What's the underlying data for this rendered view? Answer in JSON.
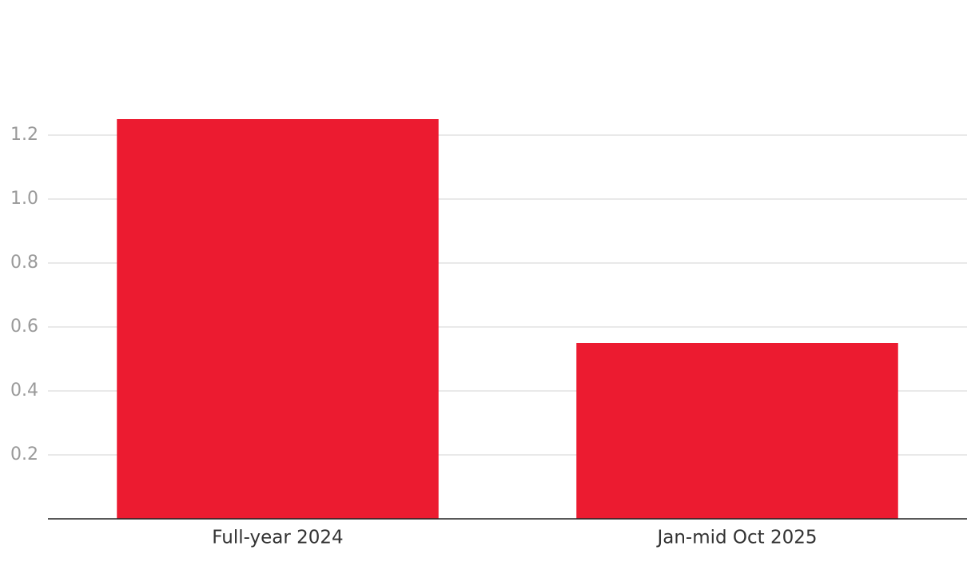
{
  "chart_data": {
    "type": "bar",
    "categories": [
      "Full-year 2024",
      "Jan-mid Oct 2025"
    ],
    "values": [
      1.25,
      0.55
    ],
    "color": "#ec1b30",
    "ylim": [
      0,
      1.3
    ],
    "yticks": [
      0.2,
      0.4,
      0.6,
      0.8,
      {
        "value": 1,
        "label": "1.0"
      },
      1.2
    ],
    "grid": true
  }
}
